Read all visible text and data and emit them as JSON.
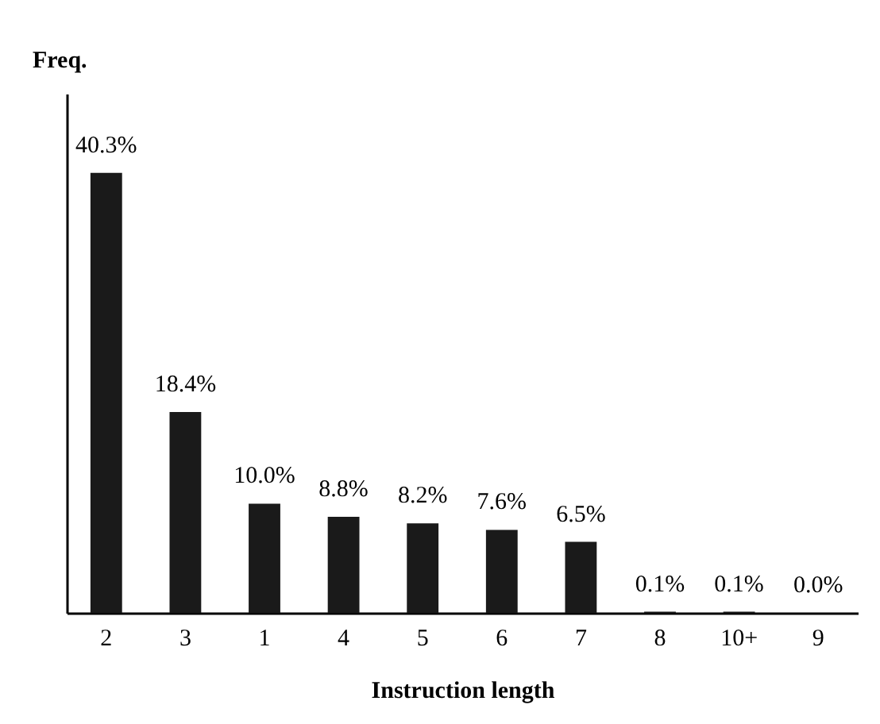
{
  "chart_data": {
    "type": "bar",
    "xlabel": "Instruction length",
    "ylabel": "Freq.",
    "categories": [
      "2",
      "3",
      "1",
      "4",
      "5",
      "6",
      "7",
      "8",
      "10+",
      "9"
    ],
    "values": [
      40.3,
      18.4,
      10.0,
      8.8,
      8.2,
      7.6,
      6.5,
      0.1,
      0.1,
      0.0
    ],
    "value_labels": [
      "40.3%",
      "18.4%",
      "10.0%",
      "8.8%",
      "8.2%",
      "7.6%",
      "6.5%",
      "0.1%",
      "0.1%",
      "0.0%"
    ],
    "color": "#1a1a1a",
    "grid": false
  }
}
